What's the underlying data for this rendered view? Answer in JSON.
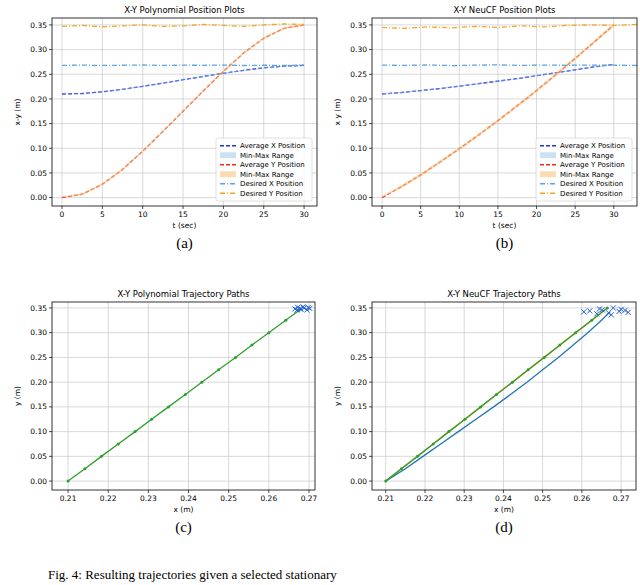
{
  "chart_data": [
    {
      "type": "line",
      "title": "X-Y Polynomial Position Plots",
      "x_label": "t (sec)",
      "y_label": "x-y (m)",
      "caption": "(a)",
      "xlim": [
        -1.24,
        31.6
      ],
      "ylim": [
        -0.017,
        0.364
      ],
      "xticks": [
        0,
        5,
        10,
        15,
        20,
        25,
        30
      ],
      "yticks": [
        {
          "value": 0,
          "label": "0.00"
        },
        0.05,
        {
          "value": 0.1,
          "label": "0.10"
        },
        0.15,
        {
          "value": 0.2,
          "label": "0.20"
        },
        0.25,
        {
          "value": 0.3,
          "label": "0.30"
        },
        0.35
      ],
      "grid": true,
      "legend": "lower right",
      "series": [
        {
          "name": "Average X Position",
          "color": "#2035d0",
          "line_style": "dashed",
          "x": [
            0,
            2.5,
            5,
            7.5,
            10,
            12.5,
            15,
            17.5,
            20,
            22.5,
            25,
            27.5,
            30
          ],
          "values": [
            0.21,
            0.211,
            0.2145,
            0.2195,
            0.2255,
            0.232,
            0.239,
            0.2455,
            0.252,
            0.258,
            0.263,
            0.2665,
            0.268
          ]
        },
        {
          "name": "Min-Max Range",
          "type": "band",
          "color": "#a9cff0",
          "x": [
            0,
            2.5,
            5,
            7.5,
            10,
            12.5,
            15,
            17.5,
            20,
            22.5,
            25,
            27.5,
            30
          ],
          "low": [
            0.2095,
            0.2104,
            0.2138,
            0.2188,
            0.2247,
            0.2312,
            0.2382,
            0.2447,
            0.2512,
            0.2572,
            0.2622,
            0.2657,
            0.2672
          ],
          "high": [
            0.2105,
            0.2116,
            0.2152,
            0.2202,
            0.2263,
            0.2328,
            0.2398,
            0.2463,
            0.2528,
            0.2588,
            0.2638,
            0.2673,
            0.2688
          ]
        },
        {
          "name": "Average Y Position",
          "color": "#f02a1a",
          "line_style": "dashed",
          "x": [
            0,
            2.5,
            5,
            7.5,
            10,
            12.5,
            15,
            17.5,
            20,
            22.5,
            25,
            27.5,
            30
          ],
          "values": [
            0,
            0.007,
            0.027,
            0.057,
            0.094,
            0.134,
            0.175,
            0.216,
            0.256,
            0.293,
            0.323,
            0.343,
            0.35
          ]
        },
        {
          "name": "Min-Max Range",
          "type": "band",
          "color": "#f8c781",
          "x": [
            0,
            2.5,
            5,
            7.5,
            10,
            12.5,
            15,
            17.5,
            20,
            22.5,
            25,
            27.5,
            30
          ],
          "low": [
            0,
            0.005,
            0.025,
            0.055,
            0.092,
            0.132,
            0.173,
            0.214,
            0.254,
            0.291,
            0.321,
            0.341,
            0.348
          ],
          "high": [
            0.002,
            0.009,
            0.029,
            0.059,
            0.096,
            0.136,
            0.177,
            0.218,
            0.258,
            0.295,
            0.325,
            0.345,
            0.352
          ]
        },
        {
          "name": "Desired X Position",
          "color": "#5aa6e3",
          "line_style": "dashdot",
          "x": [
            0,
            2.5,
            5,
            7.5,
            10,
            12.5,
            15,
            17.5,
            20,
            22.5,
            25,
            27.5,
            30
          ],
          "values": [
            0.268,
            0.2685,
            0.2678,
            0.2682,
            0.2688,
            0.2679,
            0.2684,
            0.2681,
            0.2686,
            0.2677,
            0.2683,
            0.268,
            0.2684
          ]
        },
        {
          "name": "Desired Y Position",
          "color": "#f5a623",
          "line_style": "dashdot",
          "x": [
            0,
            2.5,
            5,
            7.5,
            10,
            12.5,
            15,
            17.5,
            20,
            22.5,
            25,
            27.5,
            30
          ],
          "values": [
            0.347,
            0.349,
            0.346,
            0.348,
            0.35,
            0.347,
            0.348,
            0.351,
            0.349,
            0.347,
            0.35,
            0.352,
            0.351
          ]
        }
      ]
    },
    {
      "type": "line",
      "title": "X-Y NeuCF Position Plots",
      "x_label": "t (sec)",
      "y_label": "x y (m)",
      "caption": "(b)",
      "xlim": [
        -1.3,
        33.0
      ],
      "ylim": [
        -0.017,
        0.364
      ],
      "xticks": [
        0,
        5,
        10,
        15,
        20,
        25,
        30
      ],
      "yticks": [
        {
          "value": 0,
          "label": "0.00"
        },
        0.05,
        {
          "value": 0.1,
          "label": "0.10"
        },
        0.15,
        {
          "value": 0.2,
          "label": "0.20"
        },
        0.25,
        {
          "value": 0.3,
          "label": "0.30"
        },
        0.35
      ],
      "grid": true,
      "legend": "lower right",
      "series": [
        {
          "name": "Average X Position",
          "color": "#2035d0",
          "line_style": "dashed",
          "x": [
            0,
            2.5,
            5,
            7.5,
            10,
            12.5,
            15,
            17.5,
            20,
            22.5,
            25,
            27.5,
            30
          ],
          "values": [
            0.21,
            0.213,
            0.217,
            0.221,
            0.226,
            0.231,
            0.236,
            0.241,
            0.247,
            0.253,
            0.259,
            0.265,
            0.27
          ]
        },
        {
          "name": "Min-Max Range",
          "type": "band",
          "color": "#a9cff0",
          "x": [
            0,
            2.5,
            5,
            7.5,
            10,
            12.5,
            15,
            17.5,
            20,
            22.5,
            25,
            27.5,
            30
          ],
          "low": [
            0.2092,
            0.2122,
            0.2162,
            0.2202,
            0.2252,
            0.2302,
            0.2352,
            0.2402,
            0.2462,
            0.2522,
            0.2582,
            0.2642,
            0.2692
          ],
          "high": [
            0.2108,
            0.2138,
            0.2178,
            0.2218,
            0.2268,
            0.2318,
            0.2368,
            0.2418,
            0.2478,
            0.2538,
            0.2598,
            0.2658,
            0.2708
          ]
        },
        {
          "name": "Average Y Position",
          "color": "#f02a1a",
          "line_style": "dashed",
          "x": [
            0,
            2.5,
            5,
            7.5,
            10,
            12.5,
            15,
            17.5,
            20,
            22.5,
            25,
            27.5,
            30
          ],
          "values": [
            0,
            0.022,
            0.046,
            0.072,
            0.099,
            0.127,
            0.156,
            0.186,
            0.217,
            0.249,
            0.282,
            0.316,
            0.35
          ]
        },
        {
          "name": "Min-Max Range",
          "type": "band",
          "color": "#f8c781",
          "x": [
            0,
            2.5,
            5,
            7.5,
            10,
            12.5,
            15,
            17.5,
            20,
            22.5,
            25,
            27.5,
            30
          ],
          "low": [
            0,
            0.019,
            0.043,
            0.069,
            0.096,
            0.124,
            0.153,
            0.183,
            0.214,
            0.246,
            0.279,
            0.313,
            0.346
          ],
          "high": [
            0.003,
            0.025,
            0.049,
            0.075,
            0.102,
            0.13,
            0.159,
            0.189,
            0.22,
            0.252,
            0.285,
            0.319,
            0.354
          ]
        },
        {
          "name": "Desired X Position",
          "color": "#5aa6e3",
          "line_style": "dashdot",
          "x": [
            0,
            3,
            6,
            9,
            12,
            15,
            18,
            21,
            24,
            27,
            30,
            33
          ],
          "values": [
            0.2685,
            0.268,
            0.2688,
            0.2676,
            0.2684,
            0.269,
            0.2679,
            0.2686,
            0.2681,
            0.2687,
            0.2683,
            0.268
          ]
        },
        {
          "name": "Desired Y Position",
          "color": "#f5a623",
          "line_style": "dashdot",
          "x": [
            0,
            3,
            6,
            9,
            12,
            15,
            18,
            21,
            24,
            27,
            30,
            33
          ],
          "values": [
            0.345,
            0.343,
            0.346,
            0.344,
            0.347,
            0.345,
            0.348,
            0.346,
            0.349,
            0.35,
            0.349,
            0.351
          ]
        }
      ]
    },
    {
      "type": "line",
      "title": "X-Y Polynomial Trajectory Paths",
      "x_label": "x (m)",
      "y_label": "y (m)",
      "caption": "(c)",
      "xlim": [
        0.206,
        0.2715
      ],
      "ylim": [
        -0.018,
        0.362
      ],
      "xticks": [
        0.21,
        0.22,
        0.23,
        0.24,
        0.25,
        0.26,
        0.27
      ],
      "yticks": [
        {
          "value": 0,
          "label": "0.00"
        },
        0.05,
        {
          "value": 0.1,
          "label": "0.10"
        },
        0.15,
        {
          "value": 0.2,
          "label": "0.20"
        },
        0.25,
        {
          "value": 0.3,
          "label": "0.30"
        },
        0.35
      ],
      "grid": true,
      "series": [
        {
          "color": "#2ca02c",
          "line_style": "solid",
          "marker": "o",
          "x": [
            0.21,
            0.2142,
            0.2183,
            0.2225,
            0.2267,
            0.2308,
            0.235,
            0.2392,
            0.2433,
            0.2475,
            0.2517,
            0.2558,
            0.26,
            0.2642,
            0.2675
          ],
          "values": [
            0,
            0.025,
            0.05,
            0.075,
            0.1,
            0.125,
            0.15,
            0.175,
            0.2,
            0.225,
            0.25,
            0.275,
            0.3,
            0.325,
            0.345
          ]
        },
        {
          "type": "scatter",
          "color": "#1f5fd6",
          "marker": "x",
          "line_style": "none",
          "x": [
            0.2665,
            0.2672,
            0.268,
            0.2688,
            0.2695,
            0.2702,
            0.267,
            0.2685,
            0.2698,
            0.2678
          ],
          "values": [
            0.348,
            0.351,
            0.347,
            0.35,
            0.346,
            0.349,
            0.3455,
            0.352,
            0.351,
            0.3495
          ]
        }
      ]
    },
    {
      "type": "line",
      "title": "X-Y NeuCF Trajectory Paths",
      "x_label": "x (m)",
      "y_label": "y (m)",
      "caption": "(d)",
      "xlim": [
        0.2065,
        0.2738
      ],
      "ylim": [
        -0.018,
        0.362
      ],
      "xticks": [
        0.21,
        0.22,
        0.23,
        0.24,
        0.25,
        0.26,
        0.27
      ],
      "yticks": [
        {
          "value": 0,
          "label": "0.00"
        },
        0.05,
        {
          "value": 0.1,
          "label": "0.10"
        },
        0.15,
        {
          "value": 0.2,
          "label": "0.20"
        },
        0.25,
        {
          "value": 0.3,
          "label": "0.30"
        },
        0.35
      ],
      "grid": true,
      "series": [
        {
          "color": "#1f77b4",
          "line_style": "solid",
          "x": [
            0.21,
            0.215,
            0.2195,
            0.224,
            0.2285,
            0.233,
            0.2375,
            0.2418,
            0.246,
            0.25,
            0.254,
            0.2578,
            0.2615,
            0.265,
            0.2672
          ],
          "values": [
            0,
            0.025,
            0.05,
            0.075,
            0.1,
            0.125,
            0.15,
            0.175,
            0.2,
            0.225,
            0.25,
            0.275,
            0.3,
            0.325,
            0.342
          ]
        },
        {
          "color": "#ff7f0e",
          "line_style": "solid",
          "x": [
            0.21,
            0.2665
          ],
          "values": [
            0,
            0.35
          ]
        },
        {
          "color": "#2ca02c",
          "line_style": "solid",
          "marker": "o",
          "x": [
            0.21,
            0.214,
            0.2181,
            0.2221,
            0.2261,
            0.2302,
            0.2342,
            0.2382,
            0.2423,
            0.2463,
            0.2504,
            0.2544,
            0.2584,
            0.2625,
            0.2665
          ],
          "values": [
            0,
            0.025,
            0.05,
            0.075,
            0.1,
            0.125,
            0.15,
            0.175,
            0.2,
            0.225,
            0.25,
            0.275,
            0.3,
            0.325,
            0.35
          ]
        },
        {
          "type": "scatter",
          "color": "#1f5fd6",
          "marker": "x",
          "line_style": "none",
          "x": [
            0.2605,
            0.262,
            0.2638,
            0.2652,
            0.2668,
            0.268,
            0.2695,
            0.271,
            0.2718,
            0.2645,
            0.2675,
            0.27
          ],
          "values": [
            0.342,
            0.344,
            0.338,
            0.346,
            0.34,
            0.35,
            0.343,
            0.345,
            0.341,
            0.348,
            0.336,
            0.347
          ]
        }
      ]
    }
  ],
  "caption": "Fig. 4: Resulting trajectories given a selected stationary"
}
